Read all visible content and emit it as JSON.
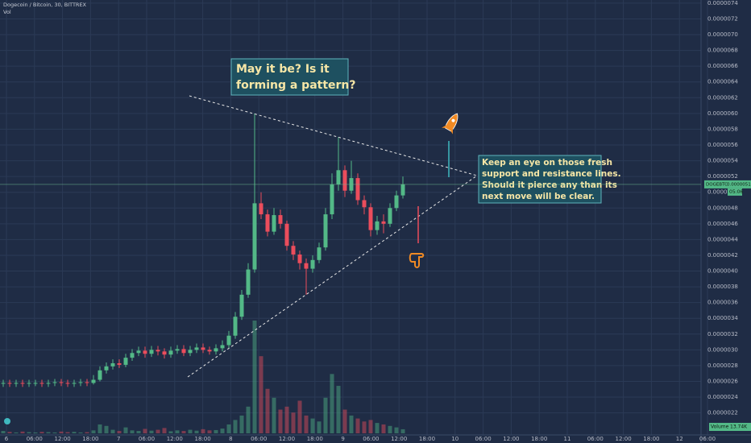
{
  "chart_data": {
    "type": "candlestick",
    "title": "Dogecoin / Bitcoin, 30, BITTREX",
    "volume_title": "Vol",
    "annotations": [
      [
        "May it be? Is it",
        "forming a pattern?"
      ],
      [
        "Keep an eye on those fresh",
        "support and resistance lines.",
        "Should it pierce any than its",
        "next move will be clear."
      ]
    ],
    "symbol": "DOGEBTC",
    "last_price": {
      "value": 5.1e-06,
      "label": "0.0000051"
    },
    "countdown": "05:06",
    "volume_tag": "Volume",
    "x_labels": [
      "6",
      "06:00",
      "12:00",
      "18:00",
      "7",
      "06:00",
      "12:00",
      "18:00",
      "8",
      "06:00",
      "12:00",
      "18:00",
      "9",
      "06:00",
      "12:00",
      "18:00",
      "10",
      "06:00",
      "12:00",
      "18:00",
      "11",
      "06:00",
      "12:00",
      "18:00",
      "12",
      "06:00"
    ],
    "open": [
      2.57e-06,
      2.58e-06,
      2.57e-06,
      2.58e-06,
      2.57e-06,
      2.58e-06,
      2.58e-06,
      2.57e-06,
      2.58e-06,
      2.59e-06,
      2.58e-06,
      2.57e-06,
      2.58e-06,
      2.59e-06,
      2.58e-06,
      2.62e-06,
      2.74e-06,
      2.79e-06,
      2.83e-06,
      2.81e-06,
      2.9e-06,
      2.96e-06,
      2.99e-06,
      2.95e-06,
      3e-06,
      2.98e-06,
      2.94e-06,
      2.99e-06,
      3.01e-06,
      2.96e-06,
      3e-06,
      3.03e-06,
      3e-06,
      2.98e-06,
      3.02e-06,
      3.06e-06,
      3.18e-06,
      3.42e-06,
      3.7e-06,
      4.02e-06,
      4.86e-06,
      4.72e-06,
      4.5e-06,
      4.71e-06,
      4.6e-06,
      4.32e-06,
      4.21e-06,
      4.1e-06,
      4.03e-06,
      4.14e-06,
      4.3e-06,
      4.72e-06,
      5.1e-06,
      5.28e-06,
      5.02e-06,
      5.18e-06,
      4.9e-06,
      4.81e-06,
      4.52e-06,
      4.63e-06,
      4.6e-06,
      4.8e-06,
      4.96e-06
    ],
    "high": [
      2.62e-06,
      2.62e-06,
      2.62e-06,
      2.62e-06,
      2.62e-06,
      2.62e-06,
      2.62e-06,
      2.62e-06,
      2.63e-06,
      2.63e-06,
      2.62e-06,
      2.62e-06,
      2.63e-06,
      2.63e-06,
      2.68e-06,
      2.79e-06,
      2.84e-06,
      2.88e-06,
      2.88e-06,
      2.95e-06,
      3.01e-06,
      3.04e-06,
      3.04e-06,
      3.05e-06,
      3.05e-06,
      3.02e-06,
      3.04e-06,
      3.06e-06,
      3.06e-06,
      3.05e-06,
      3.08e-06,
      3.08e-06,
      3.04e-06,
      3.07e-06,
      3.12e-06,
      3.24e-06,
      3.48e-06,
      3.76e-06,
      4.1e-06,
      6e-06,
      5e-06,
      4.78e-06,
      4.8e-06,
      4.78e-06,
      4.64e-06,
      4.38e-06,
      4.26e-06,
      4.16e-06,
      4.2e-06,
      4.36e-06,
      4.8e-06,
      5.24e-06,
      5.7e-06,
      5.34e-06,
      5.4e-06,
      5.24e-06,
      4.96e-06,
      4.86e-06,
      4.7e-06,
      4.72e-06,
      4.86e-06,
      5.02e-06,
      5.2e-06
    ],
    "low": [
      2.53e-06,
      2.53e-06,
      2.53e-06,
      2.53e-06,
      2.53e-06,
      2.54e-06,
      2.53e-06,
      2.53e-06,
      2.54e-06,
      2.54e-06,
      2.53e-06,
      2.53e-06,
      2.54e-06,
      2.54e-06,
      2.56e-06,
      2.6e-06,
      2.7e-06,
      2.75e-06,
      2.77e-06,
      2.78e-06,
      2.86e-06,
      2.92e-06,
      2.9e-06,
      2.91e-06,
      2.93e-06,
      2.89e-06,
      2.9e-06,
      2.95e-06,
      2.92e-06,
      2.92e-06,
      2.96e-06,
      2.96e-06,
      2.94e-06,
      2.94e-06,
      2.98e-06,
      3.02e-06,
      3.14e-06,
      3.38e-06,
      3.66e-06,
      3.98e-06,
      4.66e-06,
      4.44e-06,
      4.46e-06,
      4.54e-06,
      4.26e-06,
      4.14e-06,
      4.02e-06,
      3.7e-06,
      3.98e-06,
      4.1e-06,
      4.26e-06,
      4.66e-06,
      5.02e-06,
      4.94e-06,
      4.98e-06,
      4.84e-06,
      4.72e-06,
      4.44e-06,
      4.46e-06,
      4.48e-06,
      4.56e-06,
      4.76e-06,
      4.92e-06
    ],
    "close": [
      2.58e-06,
      2.57e-06,
      2.58e-06,
      2.57e-06,
      2.58e-06,
      2.58e-06,
      2.57e-06,
      2.58e-06,
      2.59e-06,
      2.58e-06,
      2.57e-06,
      2.58e-06,
      2.59e-06,
      2.58e-06,
      2.62e-06,
      2.74e-06,
      2.79e-06,
      2.83e-06,
      2.81e-06,
      2.9e-06,
      2.96e-06,
      2.99e-06,
      2.95e-06,
      3e-06,
      2.98e-06,
      2.94e-06,
      2.99e-06,
      3.01e-06,
      2.96e-06,
      3e-06,
      3.03e-06,
      3e-06,
      2.98e-06,
      3.02e-06,
      3.06e-06,
      3.18e-06,
      3.42e-06,
      3.7e-06,
      4.02e-06,
      4.86e-06,
      4.72e-06,
      4.5e-06,
      4.71e-06,
      4.6e-06,
      4.32e-06,
      4.21e-06,
      4.1e-06,
      4.03e-06,
      4.14e-06,
      4.3e-06,
      4.72e-06,
      5.1e-06,
      5.28e-06,
      5.02e-06,
      5.18e-06,
      4.9e-06,
      4.81e-06,
      4.52e-06,
      4.63e-06,
      4.6e-06,
      4.8e-06,
      4.96e-06,
      5.1e-06
    ],
    "volume": [
      8000,
      5000,
      3000,
      6000,
      4000,
      3000,
      5000,
      4000,
      3000,
      6000,
      4000,
      5000,
      3000,
      4000,
      10000,
      30000,
      25000,
      12000,
      8000,
      20000,
      10000,
      8000,
      15000,
      9000,
      12000,
      18000,
      7000,
      10000,
      8000,
      12000,
      9000,
      14000,
      10000,
      11000,
      16000,
      30000,
      45000,
      60000,
      90000,
      380000,
      260000,
      150000,
      120000,
      80000,
      90000,
      70000,
      110000,
      60000,
      50000,
      40000,
      120000,
      200000,
      160000,
      80000,
      60000,
      50000,
      40000,
      45000,
      35000,
      30000,
      25000,
      20000,
      13740
    ],
    "volume_last": {
      "value": 13740,
      "label": "13.74K"
    },
    "up_color": "#53b987",
    "down_color": "#eb4d5c",
    "ylim": [
      1.92e-06,
      7.44e-06
    ],
    "yticks": [
      {
        "value": 7.4e-06,
        "label": "0.0000074"
      },
      {
        "value": 7.2e-06,
        "label": "0.0000072"
      },
      {
        "value": 7e-06,
        "label": "0.0000070"
      },
      {
        "value": 6.8e-06,
        "label": "0.0000068"
      },
      {
        "value": 6.6e-06,
        "label": "0.0000066"
      },
      {
        "value": 6.4e-06,
        "label": "0.0000064"
      },
      {
        "value": 6.2e-06,
        "label": "0.0000062"
      },
      {
        "value": 6e-06,
        "label": "0.0000060"
      },
      {
        "value": 5.8e-06,
        "label": "0.0000058"
      },
      {
        "value": 5.6e-06,
        "label": "0.0000056"
      },
      {
        "value": 5.4e-06,
        "label": "0.0000054"
      },
      {
        "value": 5.2e-06,
        "label": "0.0000052"
      },
      {
        "value": 5e-06,
        "label": "0.0000050"
      },
      {
        "value": 4.8e-06,
        "label": "0.0000048"
      },
      {
        "value": 4.6e-06,
        "label": "0.0000046"
      },
      {
        "value": 4.4e-06,
        "label": "0.0000044"
      },
      {
        "value": 4.2e-06,
        "label": "0.0000042"
      },
      {
        "value": 4e-06,
        "label": "0.0000040"
      },
      {
        "value": 3.8e-06,
        "label": "0.0000038"
      },
      {
        "value": 3.6e-06,
        "label": "0.0000036"
      },
      {
        "value": 3.4e-06,
        "label": "0.0000034"
      },
      {
        "value": 3.2e-06,
        "label": "0.0000032"
      },
      {
        "value": 3e-06,
        "label": "0.0000030"
      },
      {
        "value": 2.8e-06,
        "label": "0.0000028"
      },
      {
        "value": 2.6e-06,
        "label": "0.0000026"
      },
      {
        "value": 2.4e-06,
        "label": "0.0000024"
      },
      {
        "value": 2.2e-06,
        "label": "0.0000022"
      }
    ],
    "grid": true
  }
}
